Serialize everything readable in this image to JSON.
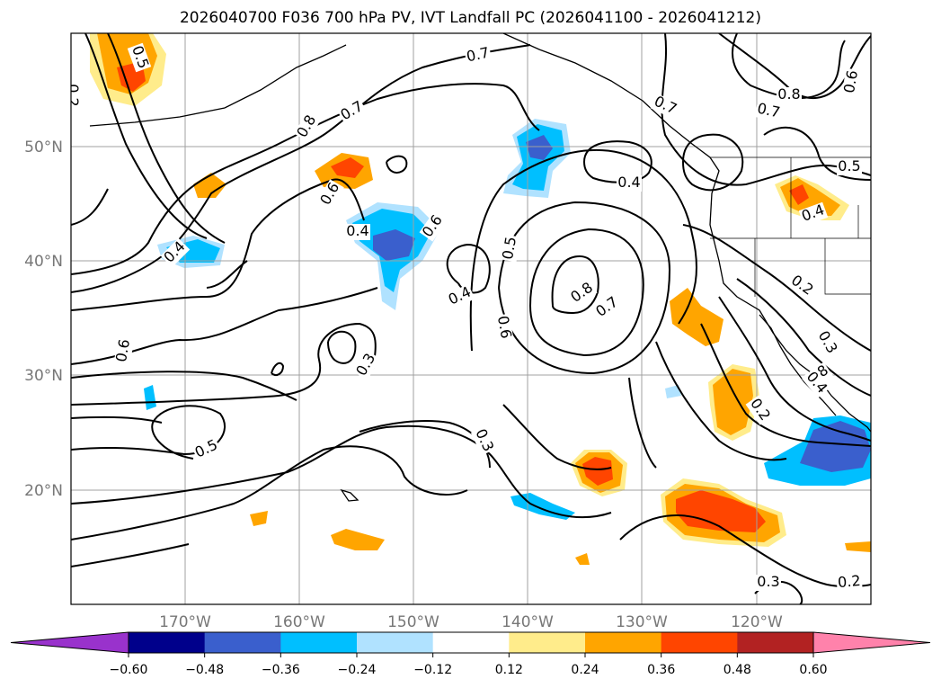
{
  "title": "2026040700 F036 700 hPa PV, IVT Landfall PC (2026041100 - 2026041212)",
  "map": {
    "lat_labels": [
      "50°N",
      "40°N",
      "30°N",
      "20°N"
    ],
    "lon_labels": [
      "170°W",
      "160°W",
      "150°W",
      "140°W",
      "130°W",
      "120°W"
    ],
    "contour_labels": [
      "0.7",
      "0.7",
      "0.8",
      "0.8",
      "0.7",
      "0.6",
      "0.6",
      "0.4",
      "0.4",
      "0.5",
      "0.4",
      "0.8",
      "0.7",
      "0.6",
      "0.3",
      "0.5",
      "0.3",
      "0.6",
      "0.2",
      "0.7",
      "0.4",
      "0.2",
      "0.5",
      "0.3",
      "0.2",
      "0.5",
      "0.8",
      "0.6",
      "0.4",
      "0.2",
      "0.4",
      "0.3"
    ]
  },
  "colorbar": {
    "ticks": [
      "−0.60",
      "−0.48",
      "−0.36",
      "−0.24",
      "−0.12",
      "0.12",
      "0.24",
      "0.36",
      "0.48",
      "0.60"
    ],
    "colors": [
      "#9932cc",
      "#00008b",
      "#3a5fcd",
      "#00bfff",
      "#b0e2ff",
      "#ffffff",
      "#ffec8b",
      "#ffa500",
      "#ff4500",
      "#b22222",
      "#ff82ab"
    ]
  }
}
